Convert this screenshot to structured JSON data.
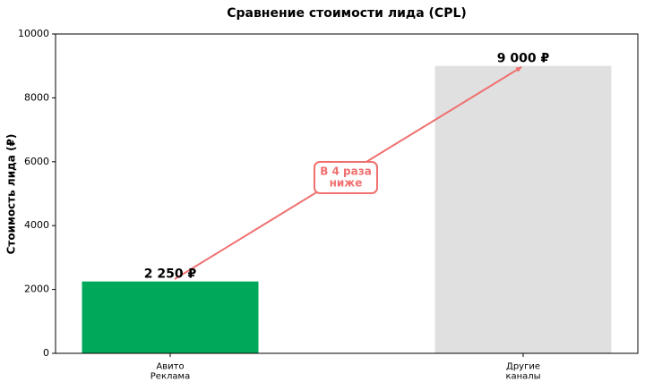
{
  "chart_data": {
    "type": "bar",
    "title": "Сравнение стоимости лида (CPL)",
    "ylabel": "Стоимость лида (₽)",
    "categories": [
      "Авито\nРеклама",
      "Другие\nканалы"
    ],
    "values": [
      2250,
      9000
    ],
    "value_labels": [
      "2 250 ₽",
      "9 000 ₽"
    ],
    "colors": [
      "#00a859",
      "#e0e0e0"
    ],
    "ylim": [
      0,
      10000
    ],
    "yticks": [
      0,
      2000,
      4000,
      6000,
      8000,
      10000
    ],
    "grid": false,
    "annotation": "В 4 раза\nниже"
  }
}
